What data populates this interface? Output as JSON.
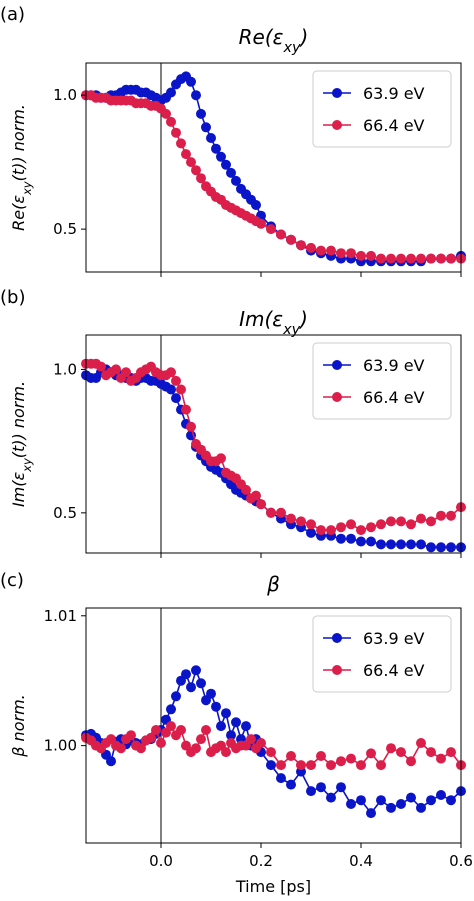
{
  "colors": {
    "series_a": "#0a14c8",
    "series_b": "#dc1e4b",
    "axis": "#000000",
    "vline": "#000000"
  },
  "xlabel": "Time [ps]",
  "x_ticks": [
    "0.0",
    "0.2",
    "0.4",
    "0.6"
  ],
  "chart_data": [
    {
      "type": "line",
      "panel_label": "(a)",
      "title": "Re(εxy)",
      "ylabel": "Re(εxy(t)) norm.",
      "xlim": [
        -0.15,
        0.6
      ],
      "ylim": [
        0.34,
        1.12
      ],
      "y_ticks": [
        {
          "v": 1.0,
          "t": "1.0"
        },
        {
          "v": 0.5,
          "t": "0.5"
        }
      ],
      "legend_position": "top-right",
      "series": [
        {
          "name": "63.9 eV",
          "x": [
            -0.15,
            -0.14,
            -0.13,
            -0.12,
            -0.11,
            -0.1,
            -0.09,
            -0.08,
            -0.07,
            -0.06,
            -0.05,
            -0.04,
            -0.03,
            -0.02,
            -0.01,
            0.0,
            0.01,
            0.02,
            0.03,
            0.04,
            0.05,
            0.06,
            0.07,
            0.08,
            0.09,
            0.1,
            0.11,
            0.12,
            0.13,
            0.14,
            0.15,
            0.16,
            0.17,
            0.18,
            0.19,
            0.2,
            0.22,
            0.24,
            0.26,
            0.28,
            0.3,
            0.32,
            0.34,
            0.36,
            0.38,
            0.4,
            0.42,
            0.44,
            0.46,
            0.48,
            0.5,
            0.52,
            0.54,
            0.56,
            0.58,
            0.6
          ],
          "values": [
            1.0,
            1.0,
            1.0,
            0.99,
            0.99,
            1.0,
            1.0,
            1.01,
            1.02,
            1.02,
            1.02,
            1.01,
            1.01,
            1.0,
            0.99,
            0.98,
            0.99,
            1.01,
            1.04,
            1.06,
            1.07,
            1.05,
            1.0,
            0.93,
            0.88,
            0.84,
            0.8,
            0.77,
            0.74,
            0.71,
            0.68,
            0.65,
            0.63,
            0.61,
            0.59,
            0.55,
            0.51,
            0.48,
            0.46,
            0.44,
            0.42,
            0.41,
            0.4,
            0.39,
            0.39,
            0.38,
            0.38,
            0.38,
            0.38,
            0.38,
            0.38,
            0.38,
            0.39,
            0.39,
            0.39,
            0.4
          ]
        },
        {
          "name": "66.4 eV",
          "x": [
            -0.15,
            -0.14,
            -0.13,
            -0.12,
            -0.11,
            -0.1,
            -0.09,
            -0.08,
            -0.07,
            -0.06,
            -0.05,
            -0.04,
            -0.03,
            -0.02,
            -0.01,
            0.0,
            0.01,
            0.02,
            0.03,
            0.04,
            0.05,
            0.06,
            0.07,
            0.08,
            0.09,
            0.1,
            0.11,
            0.12,
            0.13,
            0.14,
            0.15,
            0.16,
            0.17,
            0.18,
            0.19,
            0.2,
            0.22,
            0.24,
            0.26,
            0.28,
            0.3,
            0.32,
            0.34,
            0.36,
            0.38,
            0.4,
            0.42,
            0.44,
            0.46,
            0.48,
            0.5,
            0.52,
            0.54,
            0.56,
            0.58,
            0.6
          ],
          "values": [
            1.0,
            1.0,
            0.99,
            0.99,
            0.99,
            0.98,
            0.98,
            0.98,
            0.98,
            0.98,
            0.97,
            0.97,
            0.97,
            0.96,
            0.96,
            0.95,
            0.93,
            0.9,
            0.86,
            0.82,
            0.78,
            0.75,
            0.72,
            0.69,
            0.66,
            0.64,
            0.62,
            0.61,
            0.59,
            0.58,
            0.57,
            0.56,
            0.55,
            0.54,
            0.53,
            0.52,
            0.5,
            0.48,
            0.46,
            0.44,
            0.43,
            0.42,
            0.42,
            0.41,
            0.41,
            0.4,
            0.4,
            0.39,
            0.39,
            0.39,
            0.39,
            0.39,
            0.39,
            0.39,
            0.39,
            0.39
          ]
        }
      ]
    },
    {
      "type": "line",
      "panel_label": "(b)",
      "title": "Im(εxy)",
      "ylabel": "Im(εxy(t)) norm.",
      "xlim": [
        -0.15,
        0.6
      ],
      "ylim": [
        0.36,
        1.12
      ],
      "y_ticks": [
        {
          "v": 1.0,
          "t": "1.0"
        },
        {
          "v": 0.5,
          "t": "0.5"
        }
      ],
      "legend_position": "top-right",
      "series": [
        {
          "name": "63.9 eV",
          "x": [
            -0.15,
            -0.14,
            -0.13,
            -0.12,
            -0.11,
            -0.1,
            -0.09,
            -0.08,
            -0.07,
            -0.06,
            -0.05,
            -0.04,
            -0.03,
            -0.02,
            -0.01,
            0.0,
            0.01,
            0.02,
            0.03,
            0.04,
            0.05,
            0.06,
            0.07,
            0.08,
            0.09,
            0.1,
            0.11,
            0.12,
            0.13,
            0.14,
            0.15,
            0.16,
            0.17,
            0.18,
            0.19,
            0.2,
            0.22,
            0.24,
            0.26,
            0.28,
            0.3,
            0.32,
            0.34,
            0.36,
            0.38,
            0.4,
            0.42,
            0.44,
            0.46,
            0.48,
            0.5,
            0.52,
            0.54,
            0.56,
            0.58,
            0.6
          ],
          "values": [
            0.98,
            0.97,
            0.97,
            0.99,
            1.0,
            0.99,
            0.98,
            0.98,
            0.97,
            0.97,
            0.96,
            0.97,
            0.97,
            0.96,
            0.96,
            0.95,
            0.94,
            0.93,
            0.9,
            0.86,
            0.81,
            0.77,
            0.73,
            0.7,
            0.68,
            0.66,
            0.65,
            0.64,
            0.62,
            0.6,
            0.58,
            0.57,
            0.56,
            0.55,
            0.54,
            0.53,
            0.5,
            0.48,
            0.46,
            0.45,
            0.43,
            0.42,
            0.42,
            0.41,
            0.41,
            0.4,
            0.4,
            0.39,
            0.39,
            0.39,
            0.39,
            0.39,
            0.38,
            0.38,
            0.38,
            0.38
          ]
        },
        {
          "name": "66.4 eV",
          "x": [
            -0.15,
            -0.14,
            -0.13,
            -0.12,
            -0.11,
            -0.1,
            -0.09,
            -0.08,
            -0.07,
            -0.06,
            -0.05,
            -0.04,
            -0.03,
            -0.02,
            -0.01,
            0.0,
            0.01,
            0.02,
            0.03,
            0.04,
            0.05,
            0.06,
            0.07,
            0.08,
            0.09,
            0.1,
            0.11,
            0.12,
            0.13,
            0.14,
            0.15,
            0.16,
            0.17,
            0.18,
            0.19,
            0.2,
            0.22,
            0.24,
            0.26,
            0.28,
            0.3,
            0.32,
            0.34,
            0.36,
            0.38,
            0.4,
            0.42,
            0.44,
            0.46,
            0.48,
            0.5,
            0.52,
            0.54,
            0.56,
            0.58,
            0.6
          ],
          "values": [
            1.02,
            1.02,
            1.02,
            1.01,
            0.98,
            0.99,
            1.0,
            0.97,
            0.99,
            0.96,
            0.97,
            0.99,
            1.0,
            1.01,
            0.99,
            0.98,
            0.98,
            0.99,
            0.96,
            0.93,
            0.86,
            0.8,
            0.74,
            0.72,
            0.7,
            0.68,
            0.68,
            0.69,
            0.64,
            0.63,
            0.62,
            0.6,
            0.58,
            0.55,
            0.56,
            0.53,
            0.5,
            0.5,
            0.48,
            0.47,
            0.46,
            0.44,
            0.44,
            0.45,
            0.46,
            0.44,
            0.45,
            0.46,
            0.47,
            0.47,
            0.46,
            0.48,
            0.47,
            0.49,
            0.49,
            0.52
          ]
        }
      ]
    },
    {
      "type": "line",
      "panel_label": "(c)",
      "title": "β",
      "ylabel": "β norm.",
      "xlim": [
        -0.15,
        0.6
      ],
      "ylim": [
        0.9925,
        1.0106
      ],
      "y_ticks": [
        {
          "v": 1.01,
          "t": "1.01"
        },
        {
          "v": 1.0,
          "t": "1.00"
        }
      ],
      "legend_position": "top-right",
      "series": [
        {
          "name": "63.9 eV",
          "x": [
            -0.15,
            -0.14,
            -0.13,
            -0.12,
            -0.11,
            -0.1,
            -0.09,
            -0.08,
            -0.07,
            -0.06,
            -0.05,
            -0.04,
            -0.03,
            -0.02,
            -0.01,
            0.0,
            0.01,
            0.02,
            0.03,
            0.04,
            0.05,
            0.06,
            0.07,
            0.08,
            0.09,
            0.1,
            0.11,
            0.12,
            0.13,
            0.14,
            0.15,
            0.16,
            0.17,
            0.18,
            0.19,
            0.2,
            0.22,
            0.24,
            0.26,
            0.28,
            0.3,
            0.32,
            0.34,
            0.36,
            0.38,
            0.4,
            0.42,
            0.44,
            0.46,
            0.48,
            0.5,
            0.52,
            0.54,
            0.56,
            0.58,
            0.6
          ],
          "values": [
            1.0008,
            1.0009,
            1.0006,
            1.0002,
            0.9993,
            0.9988,
            1.0003,
            1.0005,
            1.0001,
            1.0004,
            1.0002,
            1.0001,
            1.0004,
            1.0005,
            1.0009,
            1.0012,
            1.002,
            1.0028,
            1.0038,
            1.005,
            1.0055,
            1.0045,
            1.0058,
            1.0048,
            1.0035,
            1.004,
            1.003,
            1.0015,
            1.0025,
            1.0008,
            1.0018,
            1.0005,
            1.0015,
            1.0,
            1.0005,
            0.9995,
            0.9985,
            0.9975,
            0.997,
            0.998,
            0.9965,
            0.9968,
            0.996,
            0.9968,
            0.9955,
            0.9958,
            0.9948,
            0.9958,
            0.9952,
            0.9955,
            0.996,
            0.9952,
            0.9958,
            0.9962,
            0.9958,
            0.9965
          ]
        },
        {
          "name": "66.4 eV",
          "x": [
            -0.15,
            -0.14,
            -0.13,
            -0.12,
            -0.11,
            -0.1,
            -0.09,
            -0.08,
            -0.07,
            -0.06,
            -0.05,
            -0.04,
            -0.03,
            -0.02,
            -0.01,
            0.0,
            0.01,
            0.02,
            0.03,
            0.04,
            0.05,
            0.06,
            0.07,
            0.08,
            0.09,
            0.1,
            0.11,
            0.12,
            0.13,
            0.14,
            0.15,
            0.16,
            0.17,
            0.18,
            0.19,
            0.2,
            0.22,
            0.24,
            0.26,
            0.28,
            0.3,
            0.32,
            0.34,
            0.36,
            0.38,
            0.4,
            0.42,
            0.44,
            0.46,
            0.48,
            0.5,
            0.52,
            0.54,
            0.56,
            0.58,
            0.6
          ],
          "values": [
            1.0006,
            1.0004,
            1.0,
            0.9998,
            1.0002,
            1.0005,
            1.0,
            0.9998,
            1.0005,
            1.0008,
            1.0,
            0.9998,
            1.0004,
            1.0006,
            1.0012,
            1.0002,
            1.001,
            1.0015,
            1.0008,
            1.0012,
            1.0,
            0.9995,
            0.9998,
            1.0005,
            1.0012,
            0.9995,
            0.9998,
            1.0,
            0.9995,
            1.0002,
            0.9998,
            1.0,
            1.0,
            1.0005,
            0.9998,
            1.0002,
            0.9995,
            0.9985,
            0.9992,
            0.9985,
            0.9985,
            0.9992,
            0.9985,
            0.9988,
            0.999,
            0.9985,
            0.9994,
            0.9985,
            0.9998,
            0.9995,
            0.9988,
            1.0002,
            0.9995,
            0.999,
            0.9995,
            0.9985
          ]
        }
      ]
    }
  ]
}
